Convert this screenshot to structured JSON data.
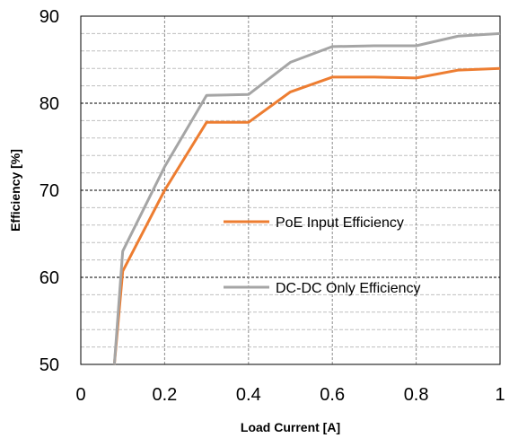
{
  "chart_data": {
    "type": "line",
    "xlabel": "Load Current [A]",
    "ylabel": "Efficiency [%]",
    "xlim": [
      0,
      1
    ],
    "ylim": [
      50,
      90
    ],
    "x_ticks": [
      "0",
      "0.2",
      "0.4",
      "0.6",
      "0.8",
      "1"
    ],
    "y_ticks": [
      "50",
      "60",
      "70",
      "80",
      "90"
    ],
    "grid": true,
    "legend_position": "center-right",
    "series": [
      {
        "name": "PoE Input Efficiency",
        "color": "#ED7D31",
        "x": [
          0.08,
          0.1,
          0.2,
          0.3,
          0.4,
          0.5,
          0.6,
          0.7,
          0.8,
          0.9,
          1.0
        ],
        "y": [
          50,
          60.7,
          70,
          77.8,
          77.8,
          81.3,
          83,
          83,
          82.9,
          83.8,
          84
        ]
      },
      {
        "name": "DC-DC Only Efficiency",
        "color": "#A5A5A5",
        "x": [
          0.08,
          0.1,
          0.2,
          0.3,
          0.4,
          0.5,
          0.6,
          0.7,
          0.8,
          0.9,
          1.0
        ],
        "y": [
          50,
          63,
          72.7,
          80.9,
          81,
          84.7,
          86.5,
          86.6,
          86.6,
          87.7,
          88
        ]
      }
    ]
  }
}
